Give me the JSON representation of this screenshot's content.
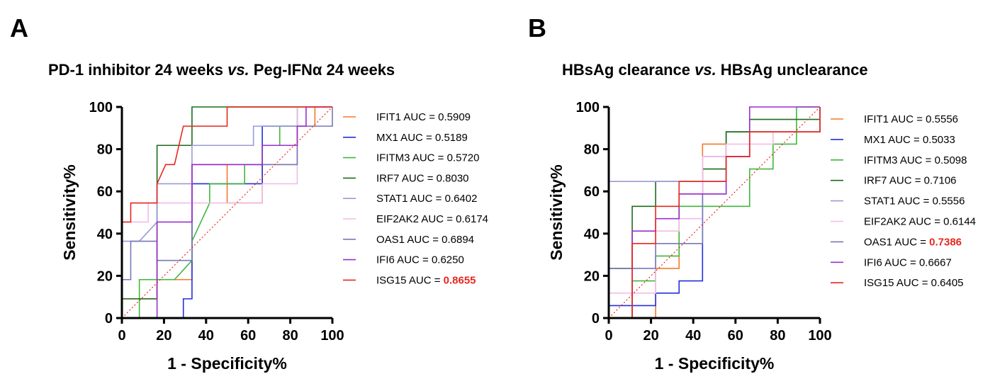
{
  "chart_data": [
    {
      "type": "line",
      "panel_label": "A",
      "title": {
        "part1": "PD-1 inhibitor 24 weeks ",
        "italic": "vs.",
        "part2": " Peg-IFNα 24 weeks"
      },
      "xlabel": "1 - Specificity%",
      "ylabel": "Sensitivity%",
      "xlim": [
        0,
        100
      ],
      "ylim": [
        0,
        100
      ],
      "xticks": [
        "0",
        "20",
        "40",
        "60",
        "80",
        "100"
      ],
      "yticks": [
        "0",
        "20",
        "40",
        "60",
        "80",
        "100"
      ],
      "reference_line": {
        "style": "dotted",
        "color": "#e8271d"
      },
      "series": [
        {
          "name": "IFIT1",
          "auc": "0.5909",
          "color": "#f47a2a",
          "highlight": false,
          "points": [
            [
              0,
              0
            ],
            [
              0,
              9.1
            ],
            [
              16.7,
              9.1
            ],
            [
              16.7,
              18.2
            ],
            [
              33.3,
              18.2
            ],
            [
              33.3,
              27.3
            ],
            [
              33.3,
              72.7
            ],
            [
              50,
              72.7
            ],
            [
              50,
              54.5
            ],
            [
              66.7,
              54.5
            ],
            [
              66.7,
              72.7
            ],
            [
              83.3,
              72.7
            ],
            [
              83.3,
              90.9
            ],
            [
              91.7,
              90.9
            ],
            [
              91.7,
              100
            ],
            [
              100,
              100
            ]
          ]
        },
        {
          "name": "MX1",
          "auc": "0.5189",
          "color": "#2230d9",
          "highlight": false,
          "points": [
            [
              0,
              0
            ],
            [
              16.7,
              0
            ],
            [
              16.7,
              0
            ],
            [
              29.2,
              0
            ],
            [
              29.2,
              9.1
            ],
            [
              33.3,
              9.1
            ],
            [
              33.3,
              27.3
            ],
            [
              33.3,
              63.6
            ],
            [
              58.3,
              63.6
            ],
            [
              66.7,
              63.6
            ],
            [
              66.7,
              90.9
            ],
            [
              83.3,
              90.9
            ],
            [
              83.3,
              100
            ],
            [
              100,
              100
            ]
          ]
        },
        {
          "name": "IFITM3",
          "auc": "0.5720",
          "color": "#3fb83a",
          "highlight": false,
          "points": [
            [
              0,
              0
            ],
            [
              8.3,
              0
            ],
            [
              8.3,
              18.2
            ],
            [
              16.7,
              18.2
            ],
            [
              25,
              18.2
            ],
            [
              33.3,
              27.3
            ],
            [
              33.3,
              36.4
            ],
            [
              37.5,
              45.5
            ],
            [
              41.7,
              54.5
            ],
            [
              41.7,
              63.6
            ],
            [
              58.3,
              63.6
            ],
            [
              58.3,
              72.7
            ],
            [
              66.7,
              72.7
            ],
            [
              66.7,
              81.8
            ],
            [
              75,
              81.8
            ],
            [
              75,
              90.9
            ],
            [
              83.3,
              90.9
            ],
            [
              83.3,
              100
            ],
            [
              100,
              100
            ]
          ]
        },
        {
          "name": "IRF7",
          "auc": "0.8030",
          "color": "#1d6b1d",
          "highlight": false,
          "points": [
            [
              0,
              0
            ],
            [
              0,
              9.1
            ],
            [
              16.7,
              9.1
            ],
            [
              16.7,
              81.8
            ],
            [
              33.3,
              81.8
            ],
            [
              33.3,
              100
            ],
            [
              100,
              100
            ]
          ]
        },
        {
          "name": "STAT1",
          "auc": "0.6402",
          "color": "#9a9ad6",
          "highlight": false,
          "points": [
            [
              0,
              0
            ],
            [
              0,
              36.4
            ],
            [
              8.3,
              36.4
            ],
            [
              16.7,
              45.5
            ],
            [
              16.7,
              63.6
            ],
            [
              33.3,
              63.6
            ],
            [
              33.3,
              81.8
            ],
            [
              62.5,
              81.8
            ],
            [
              62.5,
              90.9
            ],
            [
              83.3,
              90.9
            ],
            [
              83.3,
              100
            ],
            [
              100,
              100
            ]
          ]
        },
        {
          "name": "EIF2AK2",
          "auc": "0.6174",
          "color": "#f2bce8",
          "highlight": false,
          "points": [
            [
              0,
              0
            ],
            [
              0,
              45.5
            ],
            [
              12.5,
              45.5
            ],
            [
              12.5,
              54.5
            ],
            [
              66.7,
              54.5
            ],
            [
              66.7,
              63.6
            ],
            [
              83.3,
              63.6
            ],
            [
              83.3,
              100
            ],
            [
              100,
              100
            ]
          ]
        },
        {
          "name": "OAS1",
          "auc": "0.6894",
          "color": "#7878b8",
          "highlight": false,
          "points": [
            [
              0,
              0
            ],
            [
              0,
              18.2
            ],
            [
              4.2,
              18.2
            ],
            [
              4.2,
              36.4
            ],
            [
              16.7,
              36.4
            ],
            [
              16.7,
              27.3
            ],
            [
              33.3,
              27.3
            ],
            [
              33.3,
              72.7
            ],
            [
              83.3,
              72.7
            ],
            [
              83.3,
              90.9
            ],
            [
              100,
              90.9
            ],
            [
              100,
              100
            ]
          ]
        },
        {
          "name": "IFI6",
          "auc": "0.6250",
          "color": "#9b2fd0",
          "highlight": false,
          "points": [
            [
              0,
              0
            ],
            [
              16.7,
              0
            ],
            [
              16.7,
              45.5
            ],
            [
              33.3,
              45.5
            ],
            [
              33.3,
              72.7
            ],
            [
              66.7,
              72.7
            ],
            [
              66.7,
              81.8
            ],
            [
              83.3,
              81.8
            ],
            [
              83.3,
              90.9
            ],
            [
              87.5,
              90.9
            ],
            [
              87.5,
              100
            ],
            [
              100,
              100
            ]
          ]
        },
        {
          "name": "ISG15",
          "auc": "0.8655",
          "color": "#e8271d",
          "highlight": true,
          "points": [
            [
              0,
              0
            ],
            [
              0,
              45.5
            ],
            [
              4.2,
              45.5
            ],
            [
              4.2,
              54.5
            ],
            [
              16.7,
              54.5
            ],
            [
              16.7,
              63.6
            ],
            [
              20.8,
              72.7
            ],
            [
              25,
              72.7
            ],
            [
              29.2,
              90.9
            ],
            [
              50,
              90.9
            ],
            [
              50,
              100
            ],
            [
              100,
              100
            ]
          ]
        }
      ]
    },
    {
      "type": "line",
      "panel_label": "B",
      "title": {
        "part1": "HBsAg clearance ",
        "italic": "vs.",
        "part2": " HBsAg unclearance"
      },
      "xlabel": "1 - Specificity%",
      "ylabel": "Sensitivity%",
      "xlim": [
        0,
        100
      ],
      "ylim": [
        0,
        100
      ],
      "xticks": [
        "0",
        "20",
        "40",
        "60",
        "80",
        "100"
      ],
      "yticks": [
        "0",
        "20",
        "40",
        "60",
        "80",
        "100"
      ],
      "reference_line": {
        "style": "dotted",
        "color": "#e8271d"
      },
      "series": [
        {
          "name": "IFIT1",
          "auc": "0.5556",
          "color": "#f47a2a",
          "highlight": false,
          "points": [
            [
              0,
              0
            ],
            [
              22.2,
              0
            ],
            [
              22.2,
              23.5
            ],
            [
              33.3,
              23.5
            ],
            [
              33.3,
              58.8
            ],
            [
              44.4,
              58.8
            ],
            [
              44.4,
              82.4
            ],
            [
              55.6,
              82.4
            ],
            [
              55.6,
              88.2
            ],
            [
              100,
              88.2
            ],
            [
              100,
              100
            ]
          ]
        },
        {
          "name": "MX1",
          "auc": "0.5033",
          "color": "#2230d9",
          "highlight": false,
          "points": [
            [
              0,
              0
            ],
            [
              0,
              5.9
            ],
            [
              22.2,
              5.9
            ],
            [
              22.2,
              11.8
            ],
            [
              33.3,
              11.8
            ],
            [
              33.3,
              17.6
            ],
            [
              44.4,
              17.6
            ],
            [
              44.4,
              64.7
            ],
            [
              55.6,
              64.7
            ],
            [
              55.6,
              88.2
            ],
            [
              100,
              88.2
            ],
            [
              100,
              100
            ]
          ]
        },
        {
          "name": "IFITM3",
          "auc": "0.5098",
          "color": "#3fb83a",
          "highlight": false,
          "points": [
            [
              0,
              0
            ],
            [
              11.1,
              0
            ],
            [
              11.1,
              17.6
            ],
            [
              22.2,
              17.6
            ],
            [
              22.2,
              29.4
            ],
            [
              33.3,
              29.4
            ],
            [
              33.3,
              52.9
            ],
            [
              66.7,
              52.9
            ],
            [
              66.7,
              70.6
            ],
            [
              77.8,
              70.6
            ],
            [
              77.8,
              82.4
            ],
            [
              88.9,
              82.4
            ],
            [
              88.9,
              100
            ],
            [
              100,
              100
            ]
          ]
        },
        {
          "name": "IRF7",
          "auc": "0.7106",
          "color": "#1d6b1d",
          "highlight": false,
          "points": [
            [
              0,
              0
            ],
            [
              0,
              23.5
            ],
            [
              11.1,
              23.5
            ],
            [
              11.1,
              52.9
            ],
            [
              22.2,
              52.9
            ],
            [
              22.2,
              64.7
            ],
            [
              44.4,
              64.7
            ],
            [
              44.4,
              70.6
            ],
            [
              55.6,
              70.6
            ],
            [
              55.6,
              88.2
            ],
            [
              66.7,
              88.2
            ],
            [
              66.7,
              94.1
            ],
            [
              100,
              94.1
            ],
            [
              100,
              100
            ]
          ]
        },
        {
          "name": "STAT1",
          "auc": "0.5556",
          "color": "#9a9ad6",
          "highlight": false,
          "points": [
            [
              0,
              0
            ],
            [
              0,
              64.7
            ],
            [
              44.4,
              64.7
            ],
            [
              44.4,
              76.5
            ],
            [
              66.7,
              76.5
            ],
            [
              66.7,
              88.2
            ],
            [
              100,
              88.2
            ],
            [
              100,
              100
            ]
          ]
        },
        {
          "name": "EIF2AK2",
          "auc": "0.6144",
          "color": "#f2bce8",
          "highlight": false,
          "points": [
            [
              0,
              0
            ],
            [
              0,
              11.8
            ],
            [
              22.2,
              11.8
            ],
            [
              22.2,
              41.2
            ],
            [
              33.3,
              41.2
            ],
            [
              33.3,
              47.1
            ],
            [
              44.4,
              47.1
            ],
            [
              44.4,
              76.5
            ],
            [
              55.6,
              76.5
            ],
            [
              55.6,
              82.4
            ],
            [
              77.8,
              82.4
            ],
            [
              77.8,
              88.2
            ],
            [
              100,
              88.2
            ],
            [
              100,
              100
            ]
          ]
        },
        {
          "name": "OAS1",
          "auc": "0.7386",
          "color": "#7878b8",
          "highlight": true,
          "points": [
            [
              0,
              0
            ],
            [
              0,
              23.5
            ],
            [
              22.2,
              23.5
            ],
            [
              22.2,
              35.3
            ],
            [
              44.4,
              35.3
            ],
            [
              44.4,
              58.8
            ],
            [
              55.6,
              58.8
            ],
            [
              55.6,
              76.5
            ],
            [
              66.7,
              76.5
            ],
            [
              66.7,
              88.2
            ],
            [
              100,
              88.2
            ],
            [
              100,
              100
            ]
          ]
        },
        {
          "name": "IFI6",
          "auc": "0.6667",
          "color": "#9b2fd0",
          "highlight": false,
          "points": [
            [
              0,
              0
            ],
            [
              11.1,
              0
            ],
            [
              11.1,
              41.2
            ],
            [
              22.2,
              41.2
            ],
            [
              22.2,
              47.1
            ],
            [
              33.3,
              47.1
            ],
            [
              33.3,
              58.8
            ],
            [
              44.4,
              58.8
            ],
            [
              55.6,
              58.8
            ],
            [
              55.6,
              76.5
            ],
            [
              66.7,
              76.5
            ],
            [
              66.7,
              100
            ],
            [
              100,
              100
            ]
          ]
        },
        {
          "name": "ISG15",
          "auc": "0.6405",
          "color": "#e8271d",
          "highlight": false,
          "points": [
            [
              0,
              0
            ],
            [
              11.1,
              0
            ],
            [
              11.1,
              35.3
            ],
            [
              22.2,
              35.3
            ],
            [
              22.2,
              52.9
            ],
            [
              33.3,
              52.9
            ],
            [
              33.3,
              64.7
            ],
            [
              55.6,
              64.7
            ],
            [
              55.6,
              76.5
            ],
            [
              66.7,
              76.5
            ],
            [
              66.7,
              88.2
            ],
            [
              100,
              88.2
            ],
            [
              100,
              100
            ]
          ]
        }
      ]
    }
  ],
  "legend_auc_prefix": "AUC = ",
  "highlight_color": "#e8271d"
}
